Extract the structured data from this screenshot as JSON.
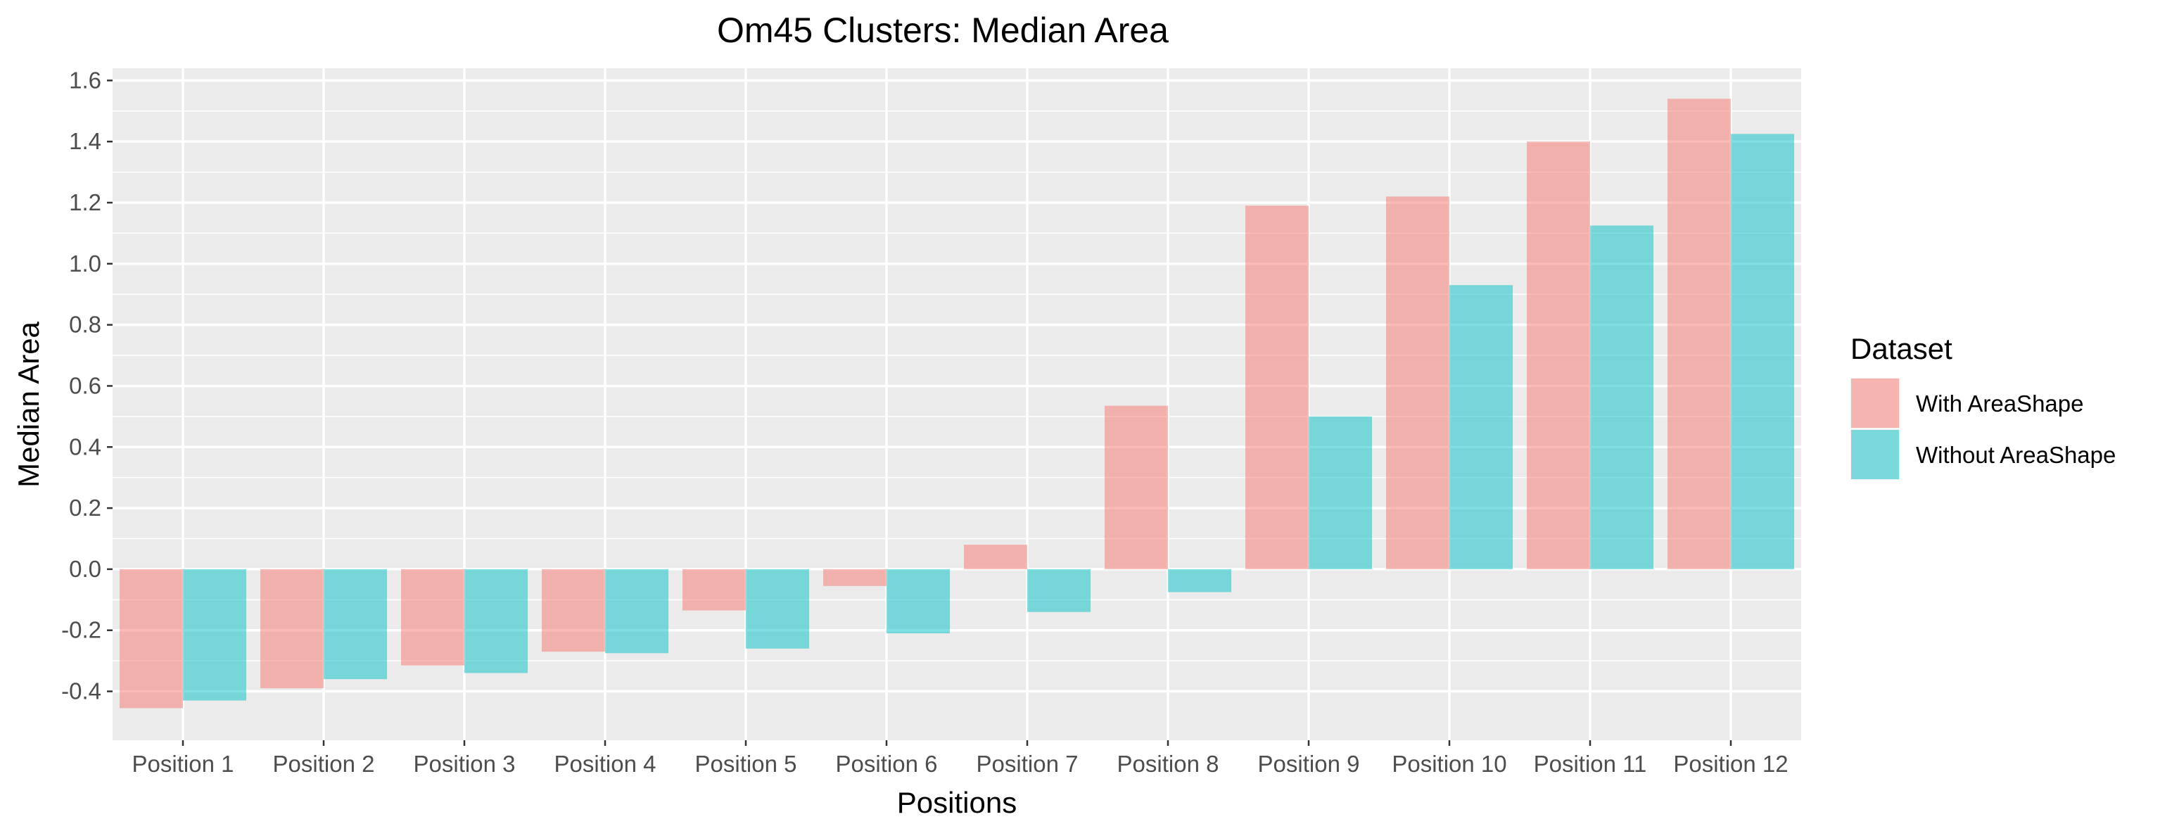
{
  "chart_data": {
    "type": "bar",
    "title": "Om45 Clusters: Median Area",
    "xlabel": "Positions",
    "ylabel": "Median Area",
    "categories": [
      "Position 1",
      "Position 2",
      "Position 3",
      "Position 4",
      "Position 5",
      "Position 6",
      "Position 7",
      "Position 8",
      "Position 9",
      "Position 10",
      "Position 11",
      "Position 12"
    ],
    "series": [
      {
        "name": "With AreaShape",
        "color": "#F8766D",
        "values": [
          -0.455,
          -0.39,
          -0.315,
          -0.27,
          -0.135,
          -0.055,
          0.08,
          0.535,
          1.19,
          1.22,
          1.4,
          1.54
        ]
      },
      {
        "name": "Without AreaShape",
        "color": "#00BFC4",
        "values": [
          -0.43,
          -0.36,
          -0.34,
          -0.275,
          -0.26,
          -0.21,
          -0.14,
          -0.075,
          0.5,
          0.93,
          1.125,
          1.425
        ]
      }
    ],
    "ylim": [
      -0.56,
      1.64
    ],
    "yticks": [
      "-0.4",
      "-0.2",
      "0.0",
      "0.2",
      "0.4",
      "0.6",
      "0.8",
      "1.0",
      "1.2",
      "1.4",
      "1.6"
    ],
    "legend": {
      "title": "Dataset",
      "position": "right"
    },
    "grid": true,
    "panel_background": "#EBEBEB",
    "bar_opacity": 0.5
  }
}
